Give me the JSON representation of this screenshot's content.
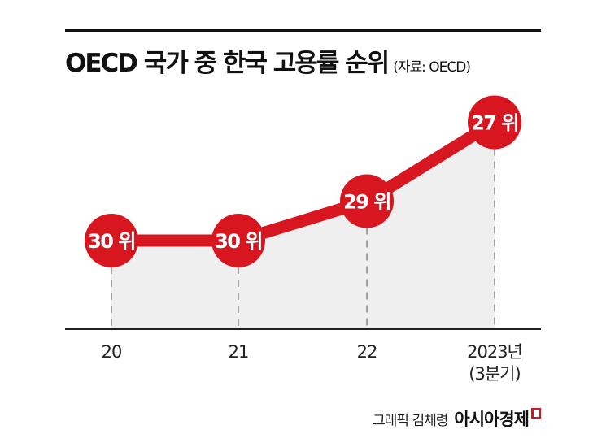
{
  "chart_data": {
    "type": "line",
    "title": "OECD 국가 중 한국 고용률 순위",
    "source": "(자료: OECD)",
    "categories": [
      "20",
      "21",
      "22",
      "2023년\n(3분기)"
    ],
    "values": [
      30,
      30,
      29,
      27
    ],
    "data_labels": [
      "30 위",
      "30 위",
      "29 위",
      "27 위"
    ],
    "ylim": [
      26,
      31
    ],
    "y_inverted": true,
    "grid": false,
    "legend": "none",
    "colors": {
      "line": "#d7161f",
      "area": "#efefef",
      "axis": "#222222"
    }
  },
  "footer": {
    "credit": "그래픽 김채령",
    "brand": "아시아경제"
  }
}
